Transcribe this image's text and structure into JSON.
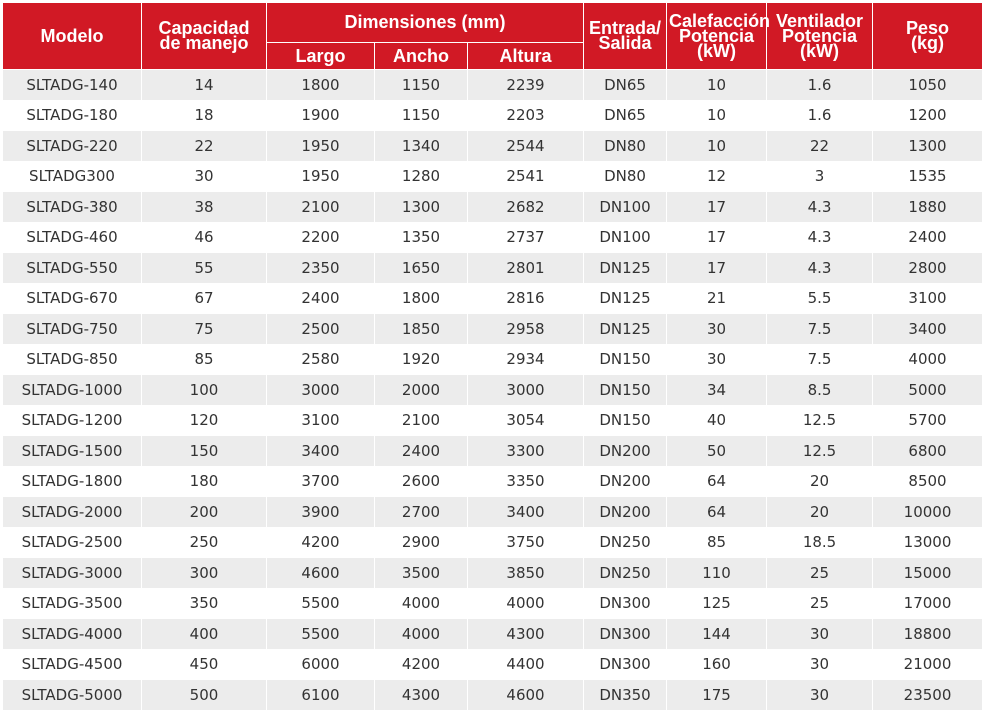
{
  "headers": {
    "modelo": "Modelo",
    "capacidad": [
      "Capacidad",
      "de manejo"
    ],
    "dimensiones": "Dimensiones (mm)",
    "largo": "Largo",
    "ancho": "Ancho",
    "altura": "Altura",
    "entrada": [
      "Entrada/",
      "Salida"
    ],
    "calefaccion": [
      "Calefacción",
      "Potencia",
      "(kW)"
    ],
    "ventilador": [
      "Ventilador",
      "Potencia",
      "(kW)"
    ],
    "peso": [
      "Peso",
      "(kg)"
    ]
  },
  "colors": {
    "header_bg": "#d11925",
    "header_text": "#ffffff",
    "row_stripe": "#ececec",
    "cell_text": "#333333"
  },
  "rows": [
    [
      "SLTADG-140",
      "14",
      "1800",
      "1150",
      "2239",
      "DN65",
      "10",
      "1.6",
      "1050"
    ],
    [
      "SLTADG-180",
      "18",
      "1900",
      "1150",
      "2203",
      "DN65",
      "10",
      "1.6",
      "1200"
    ],
    [
      "SLTADG-220",
      "22",
      "1950",
      "1340",
      "2544",
      "DN80",
      "10",
      "22",
      "1300"
    ],
    [
      "SLTADG300",
      "30",
      "1950",
      "1280",
      "2541",
      "DN80",
      "12",
      "3",
      "1535"
    ],
    [
      "SLTADG-380",
      "38",
      "2100",
      "1300",
      "2682",
      "DN100",
      "17",
      "4.3",
      "1880"
    ],
    [
      "SLTADG-460",
      "46",
      "2200",
      "1350",
      "2737",
      "DN100",
      "17",
      "4.3",
      "2400"
    ],
    [
      "SLTADG-550",
      "55",
      "2350",
      "1650",
      "2801",
      "DN125",
      "17",
      "4.3",
      "2800"
    ],
    [
      "SLTADG-670",
      "67",
      "2400",
      "1800",
      "2816",
      "DN125",
      "21",
      "5.5",
      "3100"
    ],
    [
      "SLTADG-750",
      "75",
      "2500",
      "1850",
      "2958",
      "DN125",
      "30",
      "7.5",
      "3400"
    ],
    [
      "SLTADG-850",
      "85",
      "2580",
      "1920",
      "2934",
      "DN150",
      "30",
      "7.5",
      "4000"
    ],
    [
      "SLTADG-1000",
      "100",
      "3000",
      "2000",
      "3000",
      "DN150",
      "34",
      "8.5",
      "5000"
    ],
    [
      "SLTADG-1200",
      "120",
      "3100",
      "2100",
      "3054",
      "DN150",
      "40",
      "12.5",
      "5700"
    ],
    [
      "SLTADG-1500",
      "150",
      "3400",
      "2400",
      "3300",
      "DN200",
      "50",
      "12.5",
      "6800"
    ],
    [
      "SLTADG-1800",
      "180",
      "3700",
      "2600",
      "3350",
      "DN200",
      "64",
      "20",
      "8500"
    ],
    [
      "SLTADG-2000",
      "200",
      "3900",
      "2700",
      "3400",
      "DN200",
      "64",
      "20",
      "10000"
    ],
    [
      "SLTADG-2500",
      "250",
      "4200",
      "2900",
      "3750",
      "DN250",
      "85",
      "18.5",
      "13000"
    ],
    [
      "SLTADG-3000",
      "300",
      "4600",
      "3500",
      "3850",
      "DN250",
      "110",
      "25",
      "15000"
    ],
    [
      "SLTADG-3500",
      "350",
      "5500",
      "4000",
      "4000",
      "DN300",
      "125",
      "25",
      "17000"
    ],
    [
      "SLTADG-4000",
      "400",
      "5500",
      "4000",
      "4300",
      "DN300",
      "144",
      "30",
      "18800"
    ],
    [
      "SLTADG-4500",
      "450",
      "6000",
      "4200",
      "4400",
      "DN300",
      "160",
      "30",
      "21000"
    ],
    [
      "SLTADG-5000",
      "500",
      "6100",
      "4300",
      "4600",
      "DN350",
      "175",
      "30",
      "23500"
    ]
  ]
}
